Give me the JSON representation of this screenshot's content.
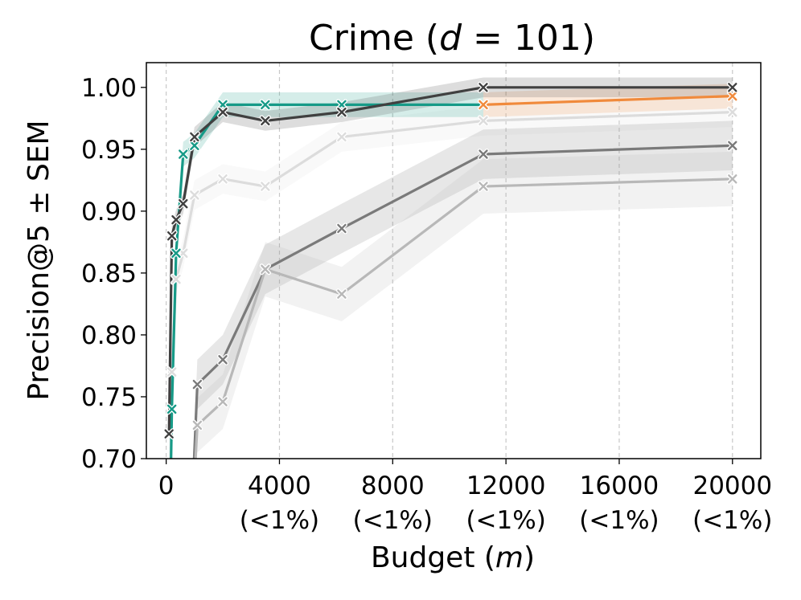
{
  "chart_data": {
    "type": "line",
    "title_prefix": "Crime (",
    "title_var": "d",
    "title_suffix": " = 101)",
    "xlabel_prefix": "Budget (",
    "xlabel_var": "m",
    "xlabel_suffix": ")",
    "ylabel": "Precision@5 ± SEM",
    "xlim": [
      -700,
      21000
    ],
    "ylim": [
      0.7,
      1.02
    ],
    "grid": "vertical dashed",
    "x_ticks": [
      {
        "value": 0,
        "label": "0",
        "sub": ""
      },
      {
        "value": 4000,
        "label": "4000",
        "sub": "(<1%)"
      },
      {
        "value": 8000,
        "label": "8000",
        "sub": "(<1%)"
      },
      {
        "value": 12000,
        "label": "12000",
        "sub": "(<1%)"
      },
      {
        "value": 16000,
        "label": "16000",
        "sub": "(<1%)"
      },
      {
        "value": 20000,
        "label": "20000",
        "sub": "(<1%)"
      }
    ],
    "y_ticks": [
      {
        "value": 0.7,
        "label": "0.70"
      },
      {
        "value": 0.75,
        "label": "0.75"
      },
      {
        "value": 0.8,
        "label": "0.80"
      },
      {
        "value": 0.85,
        "label": "0.85"
      },
      {
        "value": 0.9,
        "label": "0.90"
      },
      {
        "value": 0.95,
        "label": "0.95"
      },
      {
        "value": 1.0,
        "label": "1.00"
      }
    ],
    "series": [
      {
        "color": "#dcdcdc",
        "band": 0.012,
        "points": [
          [
            100,
            0.6
          ],
          [
            200,
            0.77
          ],
          [
            350,
            0.845
          ],
          [
            600,
            0.866
          ],
          [
            1000,
            0.913
          ],
          [
            2000,
            0.926
          ],
          [
            3500,
            0.92
          ],
          [
            6200,
            0.96
          ],
          [
            11200,
            0.973
          ],
          [
            20000,
            0.98
          ]
        ]
      },
      {
        "color": "#7a7a7a",
        "band": 0.02,
        "points": [
          [
            800,
            0.6
          ],
          [
            1100,
            0.76
          ],
          [
            2000,
            0.78
          ],
          [
            3500,
            0.853
          ],
          [
            6200,
            0.886
          ],
          [
            11200,
            0.946
          ],
          [
            20000,
            0.953
          ]
        ]
      },
      {
        "color": "#b8b8b8",
        "band": 0.022,
        "points": [
          [
            800,
            0.6
          ],
          [
            1100,
            0.727
          ],
          [
            2000,
            0.746
          ],
          [
            3500,
            0.853
          ],
          [
            6200,
            0.833
          ],
          [
            11200,
            0.92
          ],
          [
            20000,
            0.926
          ]
        ]
      },
      {
        "color": "#169a87",
        "band": 0.01,
        "points": [
          [
            100,
            0.6
          ],
          [
            200,
            0.74
          ],
          [
            350,
            0.866
          ],
          [
            600,
            0.946
          ],
          [
            1000,
            0.953
          ],
          [
            2000,
            0.986
          ],
          [
            3500,
            0.986
          ],
          [
            6200,
            0.986
          ],
          [
            11200,
            0.986
          ]
        ]
      },
      {
        "color": "#f08a3c",
        "band": 0.01,
        "points": [
          [
            11200,
            0.986
          ],
          [
            20000,
            0.993
          ]
        ]
      },
      {
        "color": "#404040",
        "band": 0.008,
        "points": [
          [
            100,
            0.72
          ],
          [
            200,
            0.88
          ],
          [
            350,
            0.893
          ],
          [
            600,
            0.906
          ],
          [
            1000,
            0.96
          ],
          [
            2000,
            0.98
          ],
          [
            3500,
            0.973
          ],
          [
            6200,
            0.98
          ],
          [
            11200,
            1.0
          ],
          [
            20000,
            1.0
          ]
        ]
      }
    ]
  }
}
